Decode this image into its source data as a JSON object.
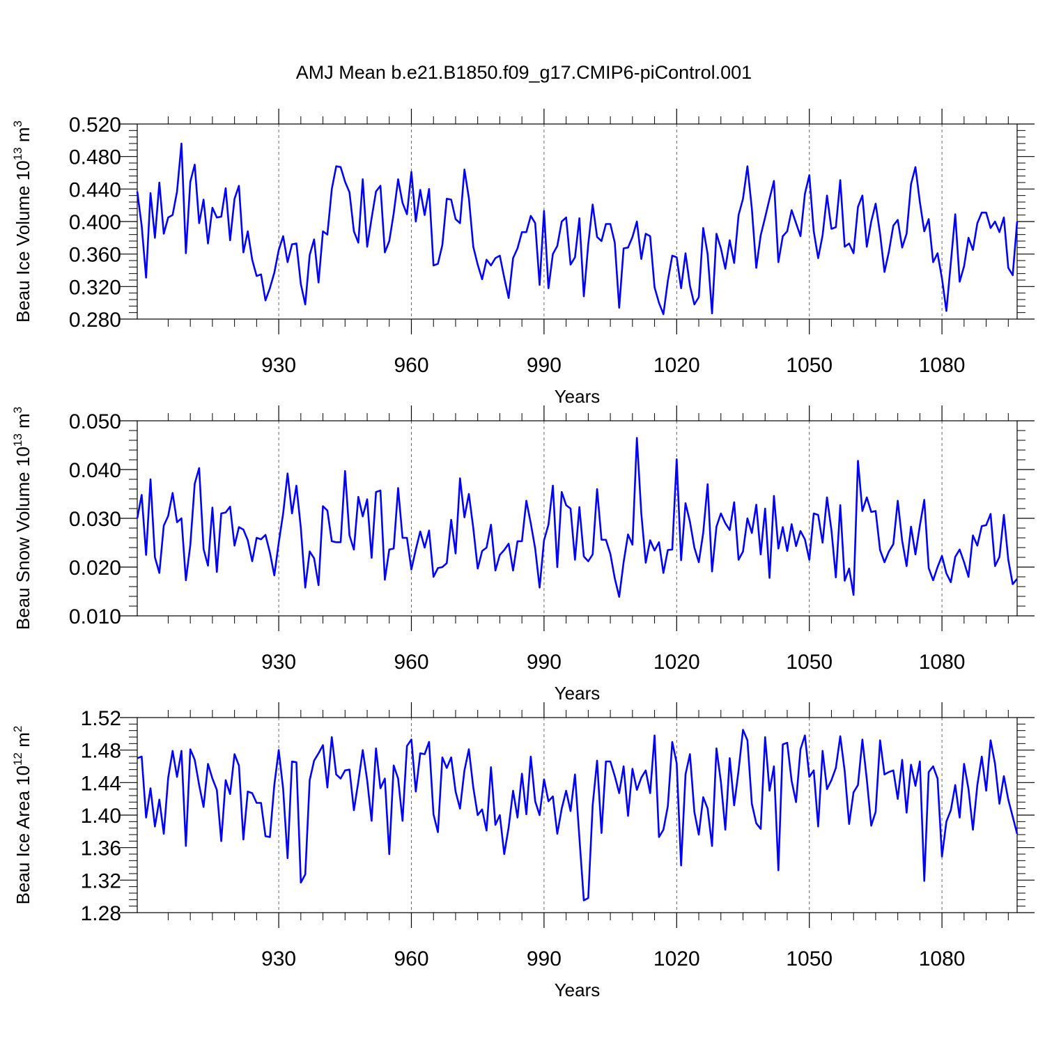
{
  "title": "AMJ Mean b.e21.B1850.f09_g17.CMIP6-piControl.001",
  "series_color": "#0000ff",
  "chart_data": [
    {
      "type": "line",
      "name": "beau-ice-volume",
      "ylabel": "Beau Ice Volume",
      "yunit_base": "10",
      "yunit_exp": "13",
      "yunit_symbol": "m",
      "yunit_symbol_exp": "3",
      "xlabel": "Years",
      "xlim": [
        898,
        1097
      ],
      "ylim": [
        0.28,
        0.52
      ],
      "x_start": 898,
      "yticks": [
        0.28,
        0.32,
        0.36,
        0.4,
        0.44,
        0.48,
        0.52
      ],
      "ytick_labels": [
        "0.280",
        "0.320",
        "0.360",
        "0.400",
        "0.440",
        "0.480",
        "0.520"
      ],
      "xticks": [
        930,
        960,
        990,
        1020,
        1050,
        1080
      ],
      "xtick_labels": [
        "930",
        "960",
        "990",
        "1020",
        "1050",
        "1080"
      ],
      "gridlines_x": true,
      "values": [
        0.437,
        0.395,
        0.331,
        0.435,
        0.38,
        0.448,
        0.385,
        0.405,
        0.408,
        0.437,
        0.496,
        0.361,
        0.449,
        0.47,
        0.398,
        0.427,
        0.373,
        0.417,
        0.405,
        0.406,
        0.441,
        0.377,
        0.428,
        0.444,
        0.362,
        0.388,
        0.353,
        0.333,
        0.335,
        0.303,
        0.318,
        0.337,
        0.365,
        0.382,
        0.35,
        0.372,
        0.373,
        0.323,
        0.298,
        0.359,
        0.378,
        0.325,
        0.388,
        0.384,
        0.44,
        0.468,
        0.467,
        0.449,
        0.436,
        0.388,
        0.374,
        0.452,
        0.369,
        0.404,
        0.437,
        0.444,
        0.362,
        0.376,
        0.41,
        0.452,
        0.423,
        0.409,
        0.461,
        0.4,
        0.439,
        0.408,
        0.44,
        0.346,
        0.348,
        0.371,
        0.428,
        0.427,
        0.403,
        0.398,
        0.464,
        0.429,
        0.369,
        0.347,
        0.329,
        0.353,
        0.346,
        0.355,
        0.358,
        0.331,
        0.306,
        0.355,
        0.367,
        0.387,
        0.387,
        0.407,
        0.398,
        0.322,
        0.413,
        0.318,
        0.36,
        0.37,
        0.4,
        0.405,
        0.347,
        0.356,
        0.404,
        0.308,
        0.372,
        0.421,
        0.381,
        0.376,
        0.397,
        0.397,
        0.374,
        0.294,
        0.367,
        0.368,
        0.381,
        0.4,
        0.354,
        0.385,
        0.382,
        0.319,
        0.3,
        0.286,
        0.327,
        0.358,
        0.356,
        0.318,
        0.361,
        0.321,
        0.298,
        0.307,
        0.392,
        0.36,
        0.287,
        0.385,
        0.367,
        0.342,
        0.377,
        0.349,
        0.408,
        0.428,
        0.468,
        0.416,
        0.343,
        0.383,
        0.405,
        0.428,
        0.45,
        0.35,
        0.382,
        0.388,
        0.414,
        0.398,
        0.382,
        0.434,
        0.457,
        0.388,
        0.355,
        0.383,
        0.432,
        0.391,
        0.393,
        0.451,
        0.369,
        0.373,
        0.361,
        0.418,
        0.432,
        0.369,
        0.4,
        0.422,
        0.385,
        0.338,
        0.363,
        0.395,
        0.402,
        0.368,
        0.385,
        0.446,
        0.467,
        0.424,
        0.388,
        0.403,
        0.35,
        0.361,
        0.33,
        0.29,
        0.349,
        0.409,
        0.326,
        0.345,
        0.38,
        0.365,
        0.398,
        0.411,
        0.411,
        0.392,
        0.4,
        0.387,
        0.405,
        0.343,
        0.334,
        0.4
      ]
    },
    {
      "type": "line",
      "name": "beau-snow-volume",
      "ylabel": "Beau Snow Volume",
      "yunit_base": "10",
      "yunit_exp": "13",
      "yunit_symbol": "m",
      "yunit_symbol_exp": "3",
      "xlabel": "Years",
      "xlim": [
        898,
        1097
      ],
      "ylim": [
        0.01,
        0.05
      ],
      "x_start": 898,
      "yticks": [
        0.01,
        0.02,
        0.03,
        0.04,
        0.05
      ],
      "ytick_labels": [
        "0.010",
        "0.020",
        "0.030",
        "0.040",
        "0.050"
      ],
      "xticks": [
        930,
        960,
        990,
        1020,
        1050,
        1080
      ],
      "xtick_labels": [
        "930",
        "960",
        "990",
        "1020",
        "1050",
        "1080"
      ],
      "gridlines_x": true,
      "values": [
        0.03,
        0.0348,
        0.0225,
        0.038,
        0.022,
        0.0188,
        0.0285,
        0.0305,
        0.0352,
        0.0292,
        0.03,
        0.0173,
        0.0245,
        0.0371,
        0.0403,
        0.0237,
        0.0203,
        0.0322,
        0.019,
        0.031,
        0.0312,
        0.0324,
        0.0244,
        0.0282,
        0.0277,
        0.0255,
        0.0212,
        0.026,
        0.0257,
        0.0266,
        0.023,
        0.0183,
        0.025,
        0.031,
        0.0392,
        0.031,
        0.0367,
        0.028,
        0.0158,
        0.0232,
        0.0218,
        0.0163,
        0.0325,
        0.0316,
        0.0253,
        0.0251,
        0.0251,
        0.0397,
        0.0265,
        0.0236,
        0.0344,
        0.0304,
        0.0339,
        0.0219,
        0.0354,
        0.0357,
        0.0174,
        0.0236,
        0.0238,
        0.0362,
        0.026,
        0.026,
        0.0195,
        0.0236,
        0.0273,
        0.024,
        0.0275,
        0.018,
        0.0198,
        0.02,
        0.0208,
        0.0297,
        0.0228,
        0.0382,
        0.0302,
        0.035,
        0.028,
        0.0197,
        0.0233,
        0.024,
        0.0287,
        0.0193,
        0.0225,
        0.0235,
        0.0248,
        0.0193,
        0.0253,
        0.0253,
        0.0336,
        0.029,
        0.0238,
        0.0158,
        0.0255,
        0.0287,
        0.0367,
        0.02,
        0.0354,
        0.0327,
        0.032,
        0.0215,
        0.0323,
        0.0222,
        0.0212,
        0.0226,
        0.036,
        0.0256,
        0.0256,
        0.0227,
        0.0177,
        0.0139,
        0.021,
        0.0267,
        0.0246,
        0.0465,
        0.031,
        0.0209,
        0.0255,
        0.0234,
        0.0251,
        0.0188,
        0.0235,
        0.0236,
        0.0421,
        0.0214,
        0.0331,
        0.0293,
        0.024,
        0.021,
        0.027,
        0.037,
        0.0191,
        0.0283,
        0.031,
        0.029,
        0.0276,
        0.0333,
        0.0215,
        0.0232,
        0.03,
        0.027,
        0.0328,
        0.0226,
        0.032,
        0.0178,
        0.0346,
        0.0238,
        0.0282,
        0.0233,
        0.0288,
        0.0243,
        0.0274,
        0.0257,
        0.0215,
        0.031,
        0.0307,
        0.025,
        0.0343,
        0.0276,
        0.0179,
        0.0327,
        0.0172,
        0.0197,
        0.0143,
        0.0418,
        0.0315,
        0.0343,
        0.0313,
        0.0315,
        0.0235,
        0.021,
        0.0232,
        0.0247,
        0.0336,
        0.0254,
        0.0202,
        0.0283,
        0.0226,
        0.0285,
        0.0338,
        0.0198,
        0.0173,
        0.02,
        0.0223,
        0.0187,
        0.0169,
        0.0221,
        0.0236,
        0.021,
        0.018,
        0.0265,
        0.0244,
        0.0284,
        0.0286,
        0.0309,
        0.0202,
        0.0221,
        0.0307,
        0.0215,
        0.0165,
        0.0176
      ]
    },
    {
      "type": "line",
      "name": "beau-ice-area",
      "ylabel": "Beau Ice Area",
      "yunit_base": "10",
      "yunit_exp": "12",
      "yunit_symbol": "m",
      "yunit_symbol_exp": "2",
      "xlabel": "Years",
      "xlim": [
        898,
        1097
      ],
      "ylim": [
        1.28,
        1.52
      ],
      "x_start": 898,
      "yticks": [
        1.28,
        1.32,
        1.36,
        1.4,
        1.44,
        1.48,
        1.52
      ],
      "ytick_labels": [
        "1.28",
        "1.32",
        "1.36",
        "1.40",
        "1.44",
        "1.48",
        "1.52"
      ],
      "xticks": [
        930,
        960,
        990,
        1020,
        1050,
        1080
      ],
      "xtick_labels": [
        "930",
        "960",
        "990",
        "1020",
        "1050",
        "1080"
      ],
      "gridlines_x": true,
      "values": [
        1.47,
        1.472,
        1.397,
        1.433,
        1.386,
        1.419,
        1.377,
        1.446,
        1.479,
        1.447,
        1.479,
        1.362,
        1.481,
        1.468,
        1.437,
        1.41,
        1.463,
        1.445,
        1.431,
        1.368,
        1.443,
        1.426,
        1.475,
        1.461,
        1.37,
        1.429,
        1.427,
        1.415,
        1.415,
        1.374,
        1.373,
        1.437,
        1.48,
        1.432,
        1.347,
        1.466,
        1.465,
        1.317,
        1.327,
        1.443,
        1.467,
        1.476,
        1.486,
        1.434,
        1.496,
        1.45,
        1.445,
        1.455,
        1.456,
        1.406,
        1.441,
        1.48,
        1.443,
        1.393,
        1.482,
        1.433,
        1.445,
        1.352,
        1.461,
        1.445,
        1.393,
        1.485,
        1.493,
        1.429,
        1.476,
        1.475,
        1.49,
        1.401,
        1.379,
        1.471,
        1.458,
        1.471,
        1.429,
        1.408,
        1.455,
        1.481,
        1.434,
        1.4,
        1.407,
        1.381,
        1.459,
        1.388,
        1.4,
        1.352,
        1.385,
        1.43,
        1.397,
        1.451,
        1.401,
        1.472,
        1.417,
        1.4,
        1.444,
        1.417,
        1.423,
        1.377,
        1.408,
        1.43,
        1.405,
        1.45,
        1.372,
        1.295,
        1.298,
        1.412,
        1.467,
        1.378,
        1.466,
        1.466,
        1.448,
        1.427,
        1.46,
        1.399,
        1.457,
        1.431,
        1.446,
        1.455,
        1.427,
        1.498,
        1.373,
        1.382,
        1.411,
        1.49,
        1.464,
        1.338,
        1.45,
        1.475,
        1.404,
        1.376,
        1.422,
        1.408,
        1.362,
        1.482,
        1.441,
        1.382,
        1.47,
        1.412,
        1.455,
        1.505,
        1.492,
        1.414,
        1.39,
        1.383,
        1.496,
        1.43,
        1.46,
        1.332,
        1.487,
        1.489,
        1.442,
        1.416,
        1.481,
        1.498,
        1.447,
        1.455,
        1.386,
        1.479,
        1.432,
        1.443,
        1.458,
        1.497,
        1.454,
        1.389,
        1.428,
        1.437,
        1.493,
        1.444,
        1.387,
        1.404,
        1.492,
        1.45,
        1.453,
        1.455,
        1.42,
        1.468,
        1.403,
        1.462,
        1.436,
        1.466,
        1.319,
        1.453,
        1.46,
        1.445,
        1.349,
        1.392,
        1.406,
        1.437,
        1.397,
        1.463,
        1.432,
        1.382,
        1.437,
        1.472,
        1.43,
        1.492,
        1.463,
        1.414,
        1.448,
        1.419,
        1.398,
        1.377
      ]
    }
  ]
}
